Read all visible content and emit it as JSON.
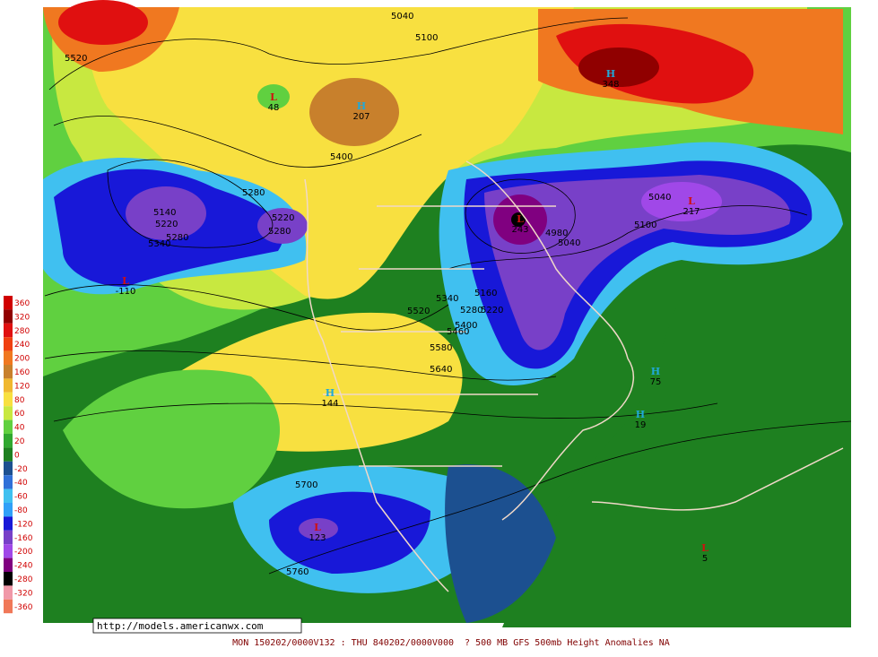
{
  "map": {
    "url": "http://models.americanwx.com",
    "footer": "MON 150202/0000V132 : THU 840202/0000V000  ? 500 MB GFS 500mb Height Anomalies NA",
    "legend": [
      {
        "value": 360,
        "color": "#d00000"
      },
      {
        "value": 320,
        "color": "#900000"
      },
      {
        "value": 280,
        "color": "#e01010"
      },
      {
        "value": 240,
        "color": "#f04010"
      },
      {
        "value": 200,
        "color": "#f07820"
      },
      {
        "value": 160,
        "color": "#c8802c"
      },
      {
        "value": 120,
        "color": "#f0b830"
      },
      {
        "value": 80,
        "color": "#f8e040"
      },
      {
        "value": 60,
        "color": "#c8e840"
      },
      {
        "value": 40,
        "color": "#60d040"
      },
      {
        "value": 20,
        "color": "#30a830"
      },
      {
        "value": 0,
        "color": "#1e8020"
      },
      {
        "value": -20,
        "color": "#1c5090"
      },
      {
        "value": -40,
        "color": "#3070d8"
      },
      {
        "value": -60,
        "color": "#40c0f0"
      },
      {
        "value": -80,
        "color": "#30a0f8"
      },
      {
        "value": -120,
        "color": "#1818d8"
      },
      {
        "value": -160,
        "color": "#7840c8"
      },
      {
        "value": -200,
        "color": "#a048e8"
      },
      {
        "value": -240,
        "color": "#800080"
      },
      {
        "value": -280,
        "color": "#000000"
      },
      {
        "value": -320,
        "color": "#f098a8"
      },
      {
        "value": -360,
        "color": "#f07858"
      }
    ],
    "contour_labels": [
      "5520",
      "5040",
      "5100",
      "5400",
      "5280",
      "5140",
      "5220",
      "5340",
      "5280",
      "5220",
      "5280",
      "4980",
      "5040",
      "5040",
      "5100",
      "5340",
      "5160",
      "5520",
      "5280",
      "5220",
      "5400",
      "5460",
      "5580",
      "5640",
      "5700",
      "5760"
    ],
    "centers": [
      {
        "kind": "L",
        "value": "48"
      },
      {
        "kind": "H",
        "value": "207"
      },
      {
        "kind": "H",
        "value": "348"
      },
      {
        "kind": "L",
        "value": "-110"
      },
      {
        "kind": "L",
        "value": "243"
      },
      {
        "kind": "L",
        "value": "217"
      },
      {
        "kind": "H",
        "value": "144"
      },
      {
        "kind": "H",
        "value": "75"
      },
      {
        "kind": "H",
        "value": "19"
      },
      {
        "kind": "L",
        "value": "123"
      },
      {
        "kind": "L",
        "value": "5"
      }
    ]
  }
}
